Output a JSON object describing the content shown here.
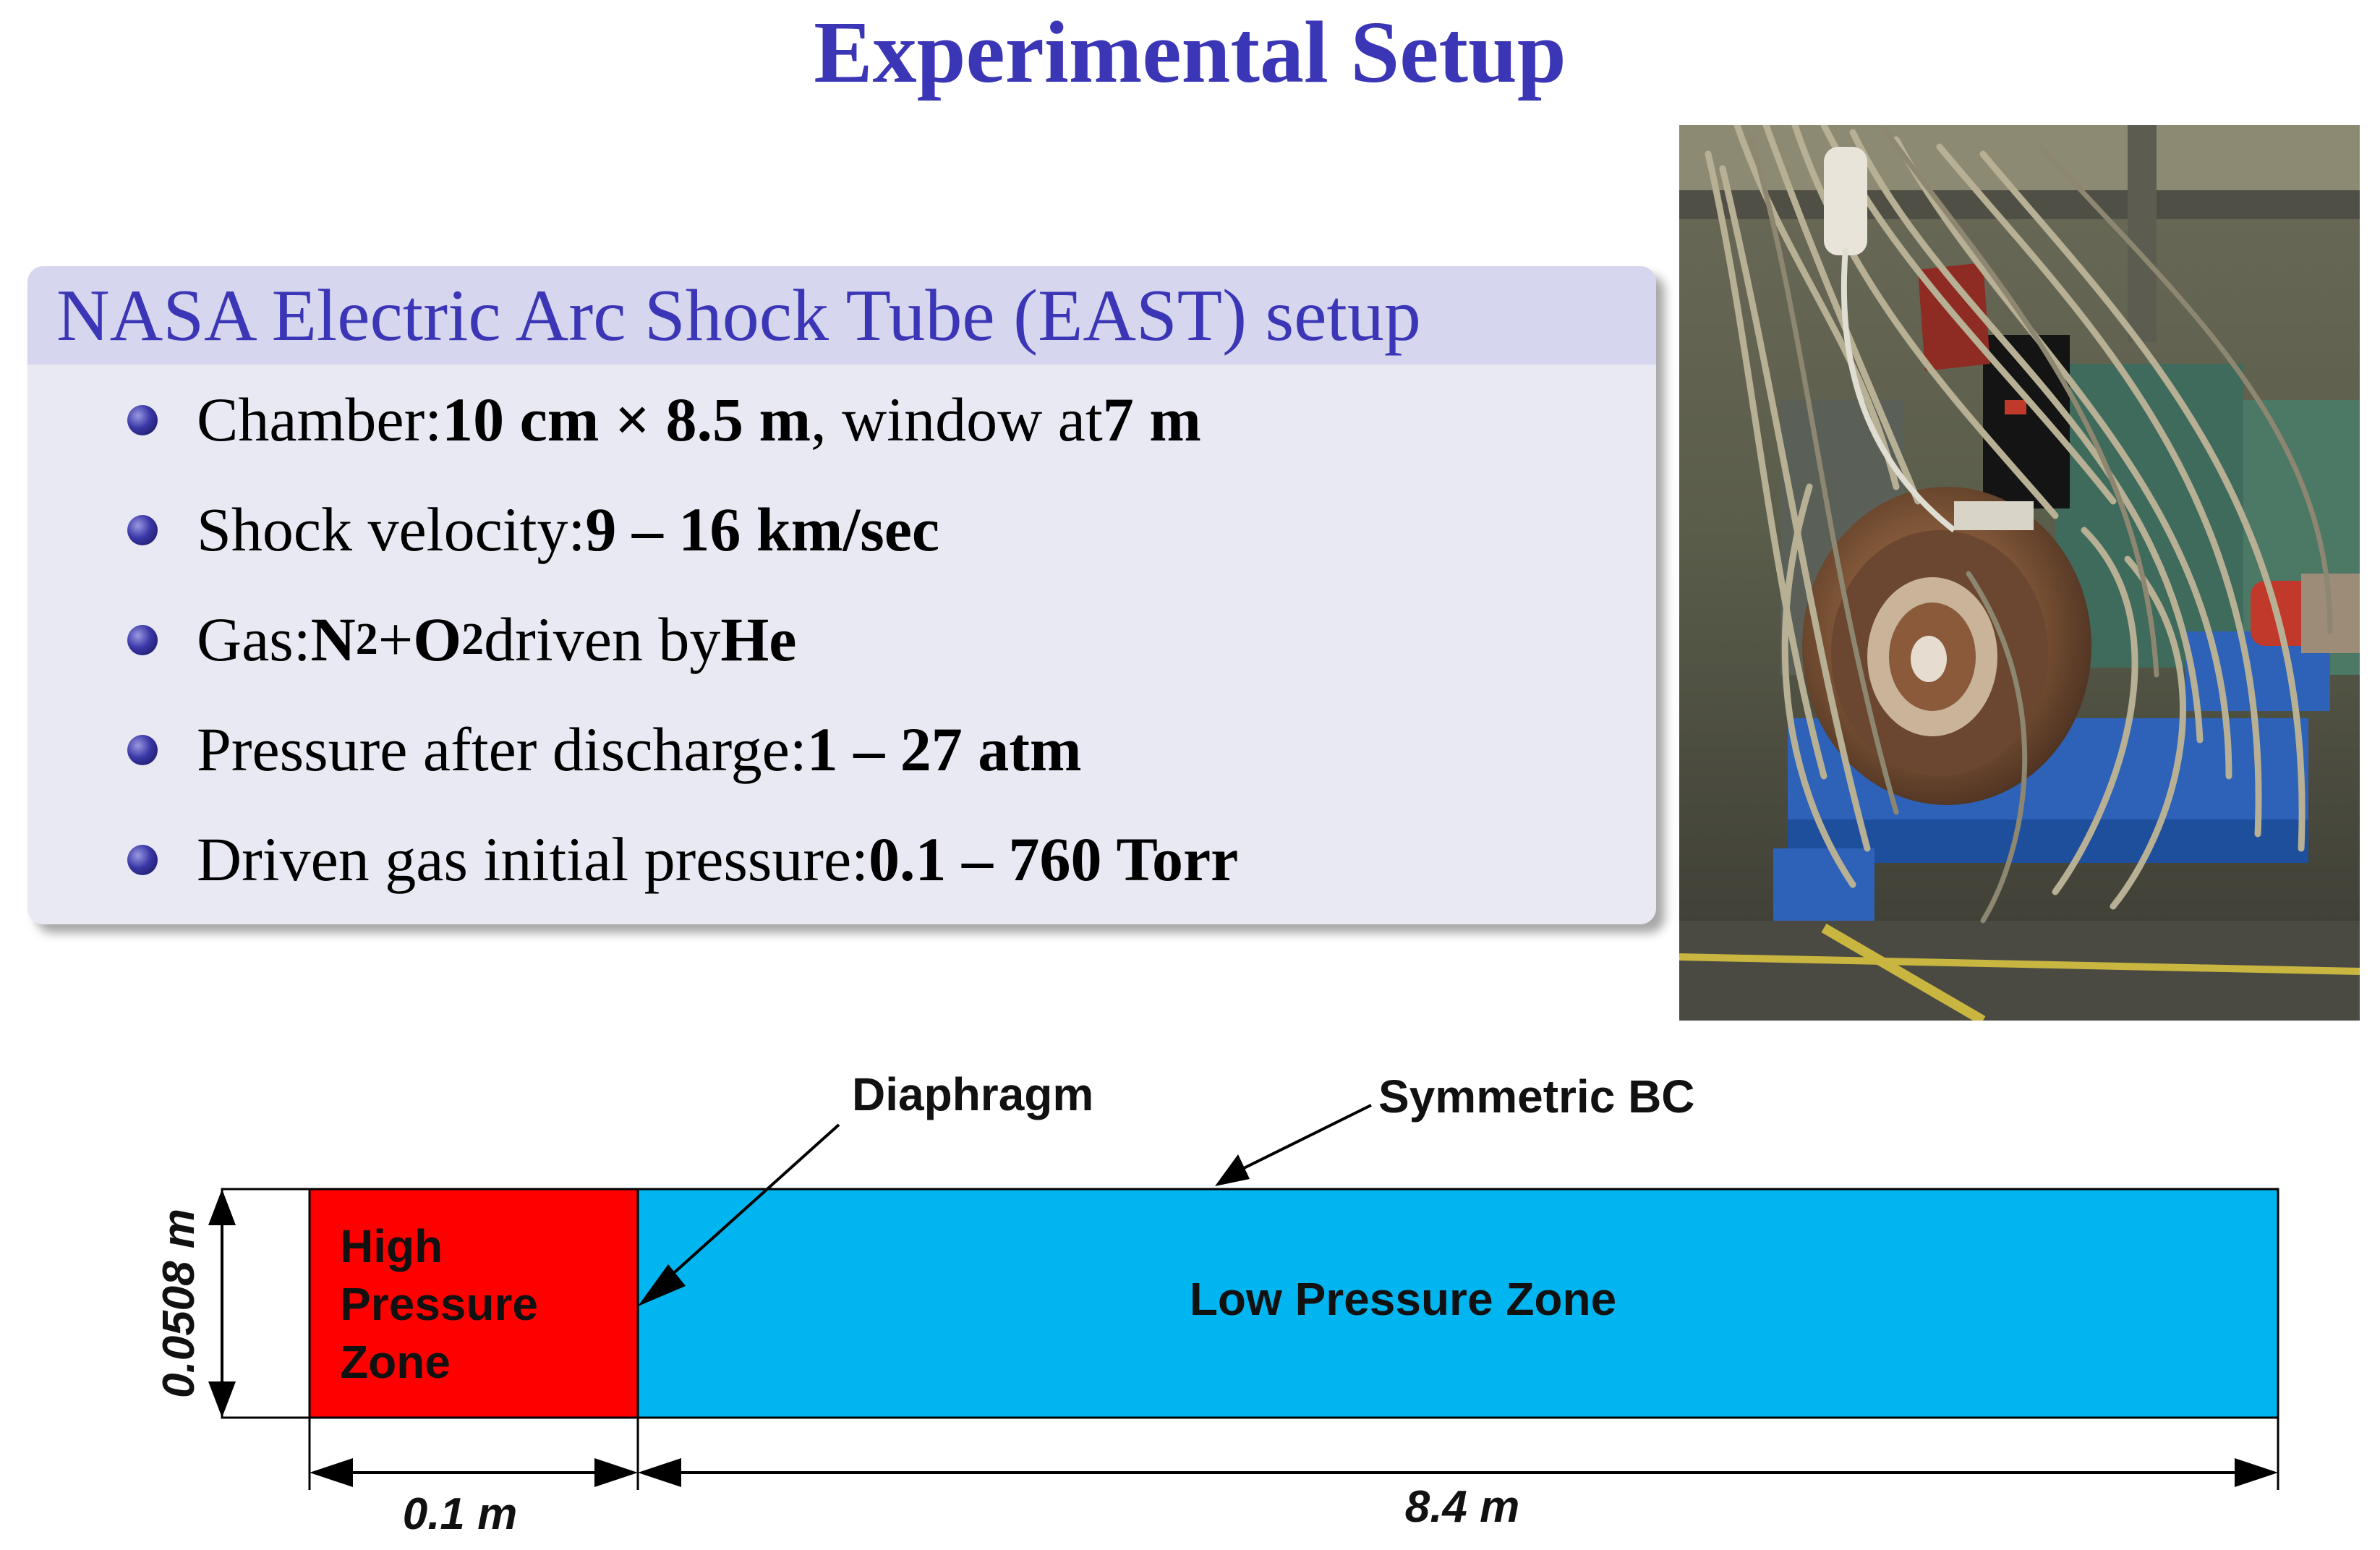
{
  "slide": {
    "title": "Experimental Setup"
  },
  "block": {
    "title": "NASA Electric Arc Shock Tube (EAST) setup",
    "bullets": [
      {
        "label": "Chamber: ",
        "value": "10 cm × 8.5 m",
        "mid": ", window at ",
        "value2": "7 m"
      },
      {
        "label": "Shock velocity: ",
        "value": "9 – 16 km/sec"
      },
      {
        "label": "Gas: ",
        "gas1": "N",
        "sub1": "2",
        "plus": " + ",
        "gas2": "O",
        "sub2": "2",
        "mid": " driven by ",
        "value": "He"
      },
      {
        "label": "Pressure after discharge: ",
        "value": "1 – 27 atm"
      },
      {
        "label": "Driven gas initial pressure: ",
        "value": "0.1 – 760 Torr"
      }
    ]
  },
  "photo": {
    "subject": "shock-tube-apparatus-photo"
  },
  "diagram": {
    "diaphragm_label": "Diaphragm",
    "symmetric_label": "Symmetric BC",
    "high_zone_line1": "High",
    "high_zone_line2": "Pressure",
    "high_zone_line3": "Zone",
    "low_zone_label": "Low Pressure Zone",
    "height_label": "0.0508 m",
    "high_length_label": "0.1 m",
    "low_length_label": "8.4 m",
    "colors": {
      "high_zone": "#ff0000",
      "low_zone": "#00b5f0"
    }
  }
}
